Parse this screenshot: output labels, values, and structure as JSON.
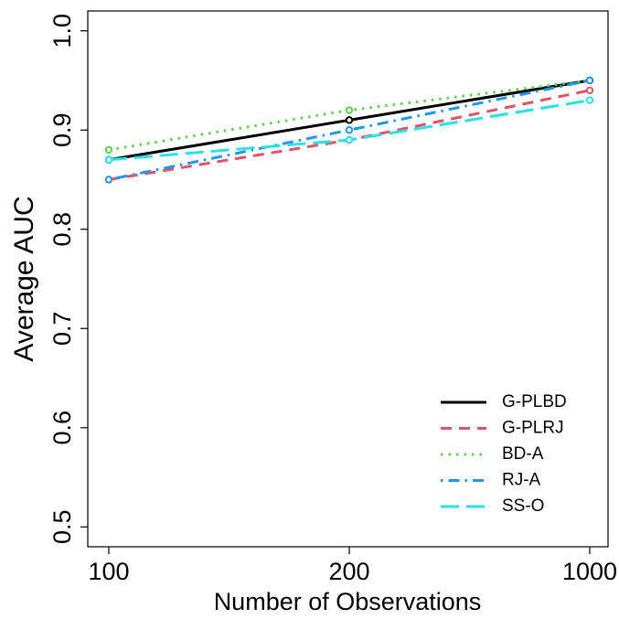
{
  "chart_data": {
    "type": "line",
    "x_label": "Number of Observations",
    "y_label": "Average AUC",
    "categories": [
      "100",
      "200",
      "1000"
    ],
    "series": [
      {
        "name": "G-PLBD",
        "color": "#000000",
        "dash": "solid",
        "values": [
          0.87,
          0.91,
          0.95
        ]
      },
      {
        "name": "G-PLRJ",
        "color": "#DF536B",
        "dash": "dashed",
        "values": [
          0.85,
          0.89,
          0.94
        ]
      },
      {
        "name": "BD-A",
        "color": "#61D04F",
        "dash": "dotted",
        "values": [
          0.88,
          0.92,
          0.95
        ]
      },
      {
        "name": "RJ-A",
        "color": "#2297E6",
        "dash": "dotdash",
        "values": [
          0.85,
          0.9,
          0.95
        ]
      },
      {
        "name": "SS-O",
        "color": "#28E2E5",
        "dash": "longdash",
        "values": [
          0.87,
          0.89,
          0.93
        ]
      }
    ],
    "ylim": [
      0.48,
      1.02
    ],
    "yticks": [
      0.5,
      0.6,
      0.7,
      0.8,
      0.9,
      {
        "value": 1,
        "label": "1.0"
      }
    ],
    "legend": "bottom-right"
  }
}
